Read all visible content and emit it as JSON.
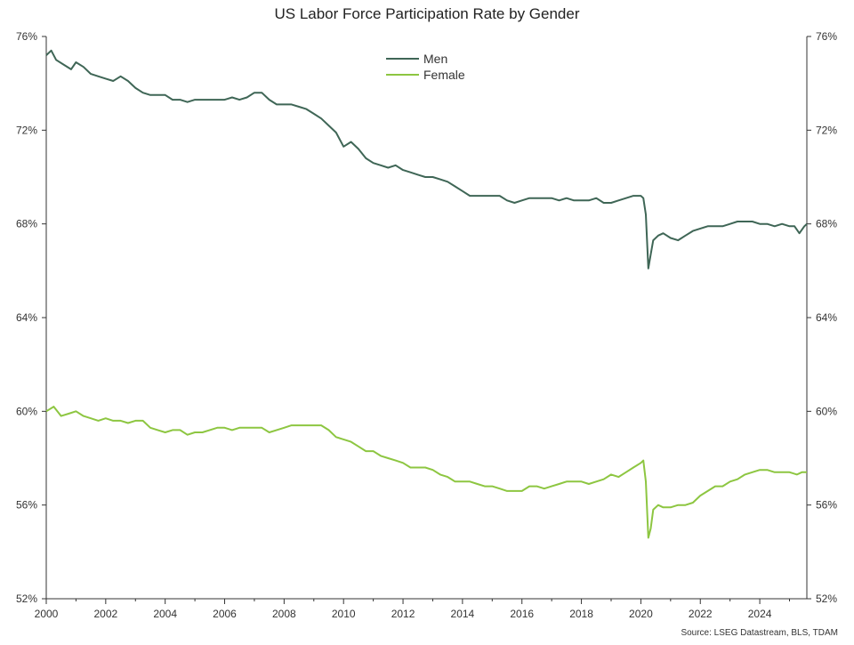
{
  "chart_data": {
    "type": "line",
    "title": "US Labor Force Participation Rate by Gender",
    "source": "Source: LSEG Datastream, BLS, TDAM",
    "x_ticks": [
      "2000",
      "2002",
      "2004",
      "2006",
      "2008",
      "2010",
      "2012",
      "2014",
      "2016",
      "2018",
      "2020",
      "2022",
      "2024"
    ],
    "xlim": [
      "2000-01",
      "2025-08"
    ],
    "ylim": [
      52,
      76
    ],
    "y_ticks": [
      52,
      56,
      60,
      64,
      68,
      72,
      76
    ],
    "y_tick_labels": [
      "52%",
      "56%",
      "60%",
      "64%",
      "68%",
      "72%",
      "76%"
    ],
    "dual_y_axis": true,
    "grid": false,
    "legend_position": "top-center",
    "series": [
      {
        "name": "Men",
        "color": "#3f6656",
        "points": [
          [
            "2000-01",
            75.2
          ],
          [
            "2000-03",
            75.4
          ],
          [
            "2000-05",
            75.0
          ],
          [
            "2000-08",
            74.8
          ],
          [
            "2000-11",
            74.6
          ],
          [
            "2001-01",
            74.9
          ],
          [
            "2001-04",
            74.7
          ],
          [
            "2001-07",
            74.4
          ],
          [
            "2001-10",
            74.3
          ],
          [
            "2002-01",
            74.2
          ],
          [
            "2002-04",
            74.1
          ],
          [
            "2002-07",
            74.3
          ],
          [
            "2002-10",
            74.1
          ],
          [
            "2003-01",
            73.8
          ],
          [
            "2003-04",
            73.6
          ],
          [
            "2003-07",
            73.5
          ],
          [
            "2003-10",
            73.5
          ],
          [
            "2004-01",
            73.5
          ],
          [
            "2004-04",
            73.3
          ],
          [
            "2004-07",
            73.3
          ],
          [
            "2004-10",
            73.2
          ],
          [
            "2005-01",
            73.3
          ],
          [
            "2005-04",
            73.3
          ],
          [
            "2005-07",
            73.3
          ],
          [
            "2005-10",
            73.3
          ],
          [
            "2006-01",
            73.3
          ],
          [
            "2006-04",
            73.4
          ],
          [
            "2006-07",
            73.3
          ],
          [
            "2006-10",
            73.4
          ],
          [
            "2007-01",
            73.6
          ],
          [
            "2007-04",
            73.6
          ],
          [
            "2007-07",
            73.3
          ],
          [
            "2007-10",
            73.1
          ],
          [
            "2008-01",
            73.1
          ],
          [
            "2008-04",
            73.1
          ],
          [
            "2008-07",
            73.0
          ],
          [
            "2008-10",
            72.9
          ],
          [
            "2009-01",
            72.7
          ],
          [
            "2009-04",
            72.5
          ],
          [
            "2009-07",
            72.2
          ],
          [
            "2009-10",
            71.9
          ],
          [
            "2010-01",
            71.3
          ],
          [
            "2010-04",
            71.5
          ],
          [
            "2010-07",
            71.2
          ],
          [
            "2010-10",
            70.8
          ],
          [
            "2011-01",
            70.6
          ],
          [
            "2011-04",
            70.5
          ],
          [
            "2011-07",
            70.4
          ],
          [
            "2011-10",
            70.5
          ],
          [
            "2012-01",
            70.3
          ],
          [
            "2012-04",
            70.2
          ],
          [
            "2012-07",
            70.1
          ],
          [
            "2012-10",
            70.0
          ],
          [
            "2013-01",
            70.0
          ],
          [
            "2013-04",
            69.9
          ],
          [
            "2013-07",
            69.8
          ],
          [
            "2013-10",
            69.6
          ],
          [
            "2014-01",
            69.4
          ],
          [
            "2014-04",
            69.2
          ],
          [
            "2014-07",
            69.2
          ],
          [
            "2014-10",
            69.2
          ],
          [
            "2015-01",
            69.2
          ],
          [
            "2015-04",
            69.2
          ],
          [
            "2015-07",
            69.0
          ],
          [
            "2015-10",
            68.9
          ],
          [
            "2016-01",
            69.0
          ],
          [
            "2016-04",
            69.1
          ],
          [
            "2016-07",
            69.1
          ],
          [
            "2016-10",
            69.1
          ],
          [
            "2017-01",
            69.1
          ],
          [
            "2017-04",
            69.0
          ],
          [
            "2017-07",
            69.1
          ],
          [
            "2017-10",
            69.0
          ],
          [
            "2018-01",
            69.0
          ],
          [
            "2018-04",
            69.0
          ],
          [
            "2018-07",
            69.1
          ],
          [
            "2018-10",
            68.9
          ],
          [
            "2019-01",
            68.9
          ],
          [
            "2019-04",
            69.0
          ],
          [
            "2019-07",
            69.1
          ],
          [
            "2019-10",
            69.2
          ],
          [
            "2020-01",
            69.2
          ],
          [
            "2020-02",
            69.1
          ],
          [
            "2020-03",
            68.4
          ],
          [
            "2020-04",
            66.1
          ],
          [
            "2020-05",
            66.7
          ],
          [
            "2020-06",
            67.3
          ],
          [
            "2020-08",
            67.5
          ],
          [
            "2020-10",
            67.6
          ],
          [
            "2021-01",
            67.4
          ],
          [
            "2021-04",
            67.3
          ],
          [
            "2021-07",
            67.5
          ],
          [
            "2021-10",
            67.7
          ],
          [
            "2022-01",
            67.8
          ],
          [
            "2022-04",
            67.9
          ],
          [
            "2022-07",
            67.9
          ],
          [
            "2022-10",
            67.9
          ],
          [
            "2023-01",
            68.0
          ],
          [
            "2023-04",
            68.1
          ],
          [
            "2023-07",
            68.1
          ],
          [
            "2023-10",
            68.1
          ],
          [
            "2024-01",
            68.0
          ],
          [
            "2024-04",
            68.0
          ],
          [
            "2024-07",
            67.9
          ],
          [
            "2024-10",
            68.0
          ],
          [
            "2025-01",
            67.9
          ],
          [
            "2025-03",
            67.9
          ],
          [
            "2025-05",
            67.6
          ],
          [
            "2025-07",
            67.9
          ],
          [
            "2025-08",
            68.0
          ]
        ]
      },
      {
        "name": "Female",
        "color": "#8dc641",
        "points": [
          [
            "2000-01",
            60.0
          ],
          [
            "2000-04",
            60.2
          ],
          [
            "2000-07",
            59.8
          ],
          [
            "2000-10",
            59.9
          ],
          [
            "2001-01",
            60.0
          ],
          [
            "2001-04",
            59.8
          ],
          [
            "2001-07",
            59.7
          ],
          [
            "2001-10",
            59.6
          ],
          [
            "2002-01",
            59.7
          ],
          [
            "2002-04",
            59.6
          ],
          [
            "2002-07",
            59.6
          ],
          [
            "2002-10",
            59.5
          ],
          [
            "2003-01",
            59.6
          ],
          [
            "2003-04",
            59.6
          ],
          [
            "2003-07",
            59.3
          ],
          [
            "2003-10",
            59.2
          ],
          [
            "2004-01",
            59.1
          ],
          [
            "2004-04",
            59.2
          ],
          [
            "2004-07",
            59.2
          ],
          [
            "2004-10",
            59.0
          ],
          [
            "2005-01",
            59.1
          ],
          [
            "2005-04",
            59.1
          ],
          [
            "2005-07",
            59.2
          ],
          [
            "2005-10",
            59.3
          ],
          [
            "2006-01",
            59.3
          ],
          [
            "2006-04",
            59.2
          ],
          [
            "2006-07",
            59.3
          ],
          [
            "2006-10",
            59.3
          ],
          [
            "2007-01",
            59.3
          ],
          [
            "2007-04",
            59.3
          ],
          [
            "2007-07",
            59.1
          ],
          [
            "2007-10",
            59.2
          ],
          [
            "2008-01",
            59.3
          ],
          [
            "2008-04",
            59.4
          ],
          [
            "2008-07",
            59.4
          ],
          [
            "2008-10",
            59.4
          ],
          [
            "2009-01",
            59.4
          ],
          [
            "2009-04",
            59.4
          ],
          [
            "2009-07",
            59.2
          ],
          [
            "2009-10",
            58.9
          ],
          [
            "2010-01",
            58.8
          ],
          [
            "2010-04",
            58.7
          ],
          [
            "2010-07",
            58.5
          ],
          [
            "2010-10",
            58.3
          ],
          [
            "2011-01",
            58.3
          ],
          [
            "2011-04",
            58.1
          ],
          [
            "2011-07",
            58.0
          ],
          [
            "2011-10",
            57.9
          ],
          [
            "2012-01",
            57.8
          ],
          [
            "2012-04",
            57.6
          ],
          [
            "2012-07",
            57.6
          ],
          [
            "2012-10",
            57.6
          ],
          [
            "2013-01",
            57.5
          ],
          [
            "2013-04",
            57.3
          ],
          [
            "2013-07",
            57.2
          ],
          [
            "2013-10",
            57.0
          ],
          [
            "2014-01",
            57.0
          ],
          [
            "2014-04",
            57.0
          ],
          [
            "2014-07",
            56.9
          ],
          [
            "2014-10",
            56.8
          ],
          [
            "2015-01",
            56.8
          ],
          [
            "2015-04",
            56.7
          ],
          [
            "2015-07",
            56.6
          ],
          [
            "2015-10",
            56.6
          ],
          [
            "2016-01",
            56.6
          ],
          [
            "2016-04",
            56.8
          ],
          [
            "2016-07",
            56.8
          ],
          [
            "2016-10",
            56.7
          ],
          [
            "2017-01",
            56.8
          ],
          [
            "2017-04",
            56.9
          ],
          [
            "2017-07",
            57.0
          ],
          [
            "2017-10",
            57.0
          ],
          [
            "2018-01",
            57.0
          ],
          [
            "2018-04",
            56.9
          ],
          [
            "2018-07",
            57.0
          ],
          [
            "2018-10",
            57.1
          ],
          [
            "2019-01",
            57.3
          ],
          [
            "2019-04",
            57.2
          ],
          [
            "2019-07",
            57.4
          ],
          [
            "2019-10",
            57.6
          ],
          [
            "2020-01",
            57.8
          ],
          [
            "2020-02",
            57.9
          ],
          [
            "2020-03",
            57.0
          ],
          [
            "2020-04",
            54.6
          ],
          [
            "2020-05",
            55.0
          ],
          [
            "2020-06",
            55.8
          ],
          [
            "2020-08",
            56.0
          ],
          [
            "2020-10",
            55.9
          ],
          [
            "2021-01",
            55.9
          ],
          [
            "2021-04",
            56.0
          ],
          [
            "2021-07",
            56.0
          ],
          [
            "2021-10",
            56.1
          ],
          [
            "2022-01",
            56.4
          ],
          [
            "2022-04",
            56.6
          ],
          [
            "2022-07",
            56.8
          ],
          [
            "2022-10",
            56.8
          ],
          [
            "2023-01",
            57.0
          ],
          [
            "2023-04",
            57.1
          ],
          [
            "2023-07",
            57.3
          ],
          [
            "2023-10",
            57.4
          ],
          [
            "2024-01",
            57.5
          ],
          [
            "2024-04",
            57.5
          ],
          [
            "2024-07",
            57.4
          ],
          [
            "2024-10",
            57.4
          ],
          [
            "2025-01",
            57.4
          ],
          [
            "2025-04",
            57.3
          ],
          [
            "2025-06",
            57.4
          ],
          [
            "2025-08",
            57.4
          ]
        ]
      }
    ]
  }
}
